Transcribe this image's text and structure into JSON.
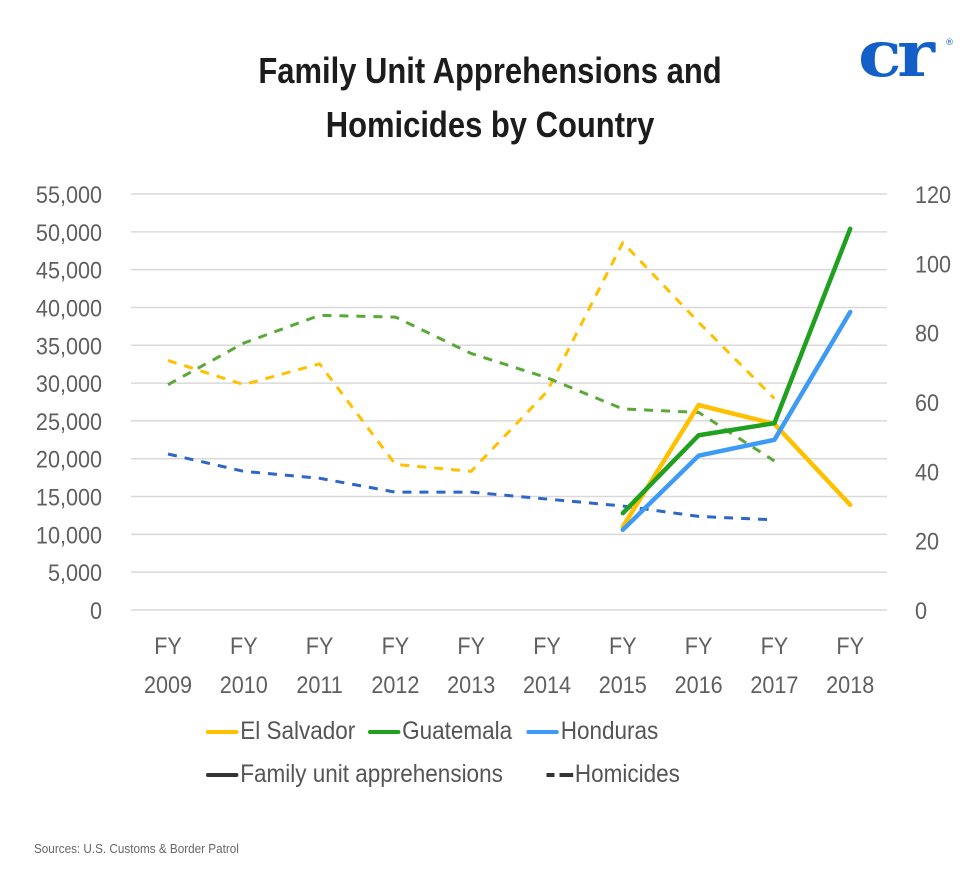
{
  "logo": {
    "text": "cr",
    "mark": "®",
    "color": "#1560c8"
  },
  "source": "Sources: U.S. Customs & Border Patrol",
  "chart_data": {
    "type": "line",
    "title": [
      "Family Unit Apprehensions and",
      "Homicides by Country"
    ],
    "x": [
      "FY 2009",
      "FY 2010",
      "FY 2011",
      "FY 2012",
      "FY 2013",
      "FY 2014",
      "FY 2015",
      "FY 2016",
      "FY 2017",
      "FY 2018"
    ],
    "x_tick_lines": [
      [
        "FY",
        "2009"
      ],
      [
        "FY",
        "2010"
      ],
      [
        "FY",
        "2011"
      ],
      [
        "FY",
        "2012"
      ],
      [
        "FY",
        "2013"
      ],
      [
        "FY",
        "2014"
      ],
      [
        "FY",
        "2015"
      ],
      [
        "FY",
        "2016"
      ],
      [
        "FY",
        "2017"
      ],
      [
        "FY",
        "2018"
      ]
    ],
    "y_left": {
      "label": "Family unit apprehensions",
      "ylim": [
        0,
        55000
      ],
      "ticks": [
        0,
        5000,
        10000,
        15000,
        20000,
        25000,
        30000,
        35000,
        40000,
        45000,
        50000,
        55000
      ],
      "tick_labels": [
        "0",
        "5,000",
        "10,000",
        "15,000",
        "20,000",
        "25,000",
        "30,000",
        "35,000",
        "40,000",
        "45,000",
        "50,000",
        "55,000"
      ]
    },
    "y_right": {
      "label": "Homicides",
      "ylim": [
        0,
        120
      ],
      "ticks": [
        0,
        20,
        40,
        60,
        80,
        100,
        120
      ],
      "tick_labels": [
        "0",
        "20",
        "40",
        "60",
        "80",
        "100",
        "120"
      ]
    },
    "grid": true,
    "legend_position": "bottom",
    "series": [
      {
        "name": "El Salvador",
        "metric": "Family unit apprehensions",
        "axis": "left",
        "style": "solid",
        "color": "#ffc000",
        "values": [
          null,
          null,
          null,
          null,
          null,
          null,
          11000,
          27100,
          24600,
          13900
        ]
      },
      {
        "name": "Guatemala",
        "metric": "Family unit apprehensions",
        "axis": "left",
        "style": "solid",
        "color": "#1fa01f",
        "values": [
          null,
          null,
          null,
          null,
          null,
          null,
          12800,
          23100,
          24700,
          50400
        ]
      },
      {
        "name": "Honduras",
        "metric": "Family unit apprehensions",
        "axis": "left",
        "style": "solid",
        "color": "#3d9bf5",
        "values": [
          null,
          null,
          null,
          null,
          null,
          null,
          10600,
          20400,
          22500,
          39400
        ]
      },
      {
        "name": "El Salvador",
        "metric": "Homicides",
        "axis": "right",
        "style": "dashed",
        "color": "#ffc000",
        "values": [
          72,
          65,
          71,
          42,
          40,
          63,
          106,
          83,
          61,
          null
        ]
      },
      {
        "name": "Guatemala",
        "metric": "Homicides",
        "axis": "right",
        "style": "dashed",
        "color": "#5ba838",
        "values": [
          65,
          77,
          85,
          84.5,
          74,
          67,
          58,
          57,
          43,
          null
        ]
      },
      {
        "name": "Honduras",
        "metric": "Homicides",
        "axis": "right",
        "style": "dashed",
        "color": "#2e66c8",
        "values": [
          45,
          40,
          38,
          34,
          34,
          32,
          30,
          27,
          26,
          null
        ]
      }
    ],
    "legend": {
      "countries": [
        {
          "label": "El Salvador",
          "color": "#ffc000"
        },
        {
          "label": "Guatemala",
          "color": "#1fa01f"
        },
        {
          "label": "Honduras",
          "color": "#3d9bf5"
        }
      ],
      "styles": [
        {
          "label": "Family unit apprehensions",
          "style": "solid",
          "color": "#333333"
        },
        {
          "label": "Homicides",
          "style": "dashed",
          "color": "#333333"
        }
      ]
    }
  }
}
